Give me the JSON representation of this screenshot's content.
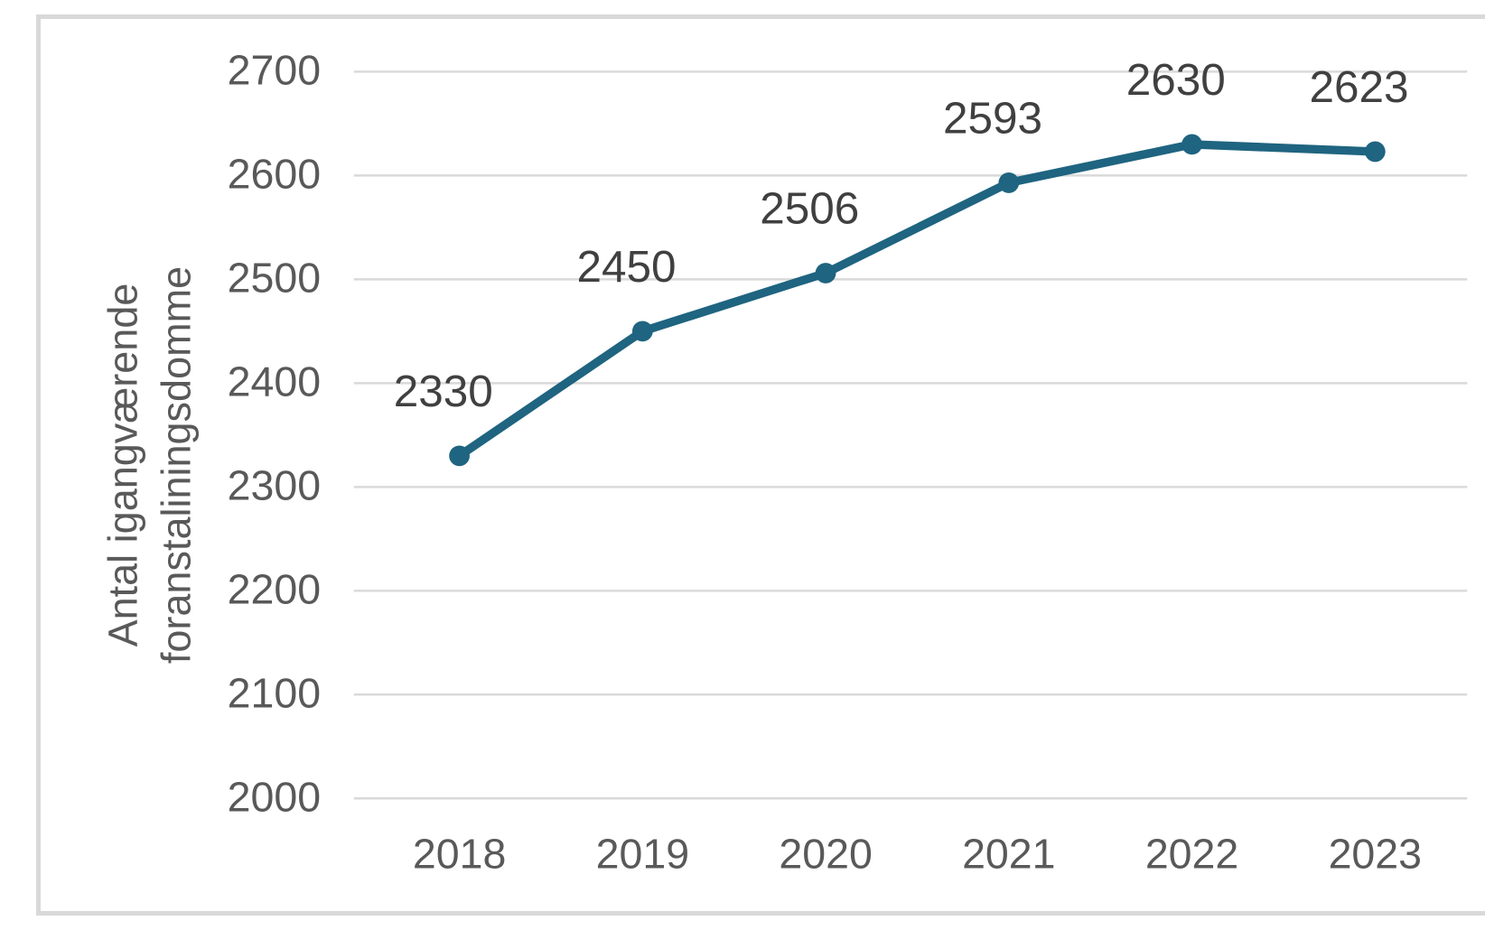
{
  "figure": {
    "background_color": "#FFFFFF",
    "border_color": "#D9D9D9"
  },
  "chart_data": {
    "type": "line",
    "title": "",
    "xlabel": "",
    "ylabel": "Antal igangværende foranstaliningsdomme",
    "categories": [
      "2018",
      "2019",
      "2020",
      "2021",
      "2022",
      "2023"
    ],
    "values": [
      2330,
      2450,
      2506,
      2593,
      2630,
      2623
    ],
    "data_labels": [
      "2330",
      "2450",
      "2506",
      "2593",
      "2630",
      "2623"
    ],
    "ylim": [
      2000,
      2700
    ],
    "yticks": [
      2000,
      2100,
      2200,
      2300,
      2400,
      2500,
      2600,
      2700
    ],
    "grid": "horizontal",
    "legend": "none",
    "marker": "circle",
    "line_color": "#1F6480",
    "marker_color": "#1F6480",
    "gridline_color": "#D9D9D9",
    "axis_text_color": "#595959",
    "data_label_color": "#404040"
  }
}
